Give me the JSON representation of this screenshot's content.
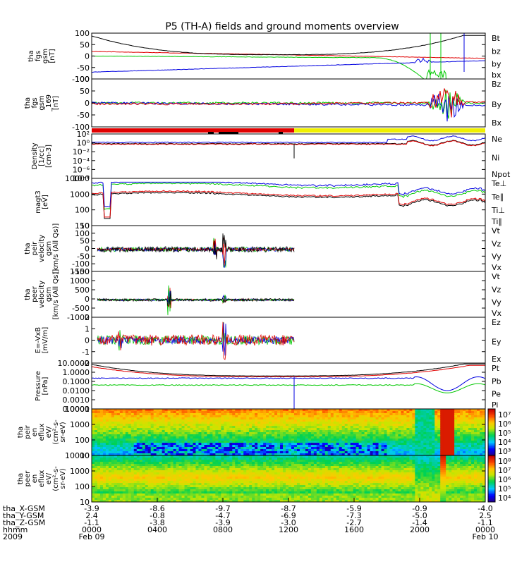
{
  "title": "P5 (TH-A) fields and ground moments overview",
  "colors": {
    "black": "#000000",
    "red": "#e00000",
    "green": "#00c800",
    "blue": "#0000e0",
    "yellow": "#f0f000",
    "background": "#ffffff"
  },
  "chart_data": [
    {
      "type": "line",
      "panel": "fgs",
      "ylabel_lines": [
        "tha",
        "fgs",
        "gsm",
        "[nT]"
      ],
      "ylim": [
        -100,
        100
      ],
      "yticks": [
        "100",
        "50",
        "0",
        "-50",
        "-100"
      ],
      "legend": [
        {
          "name": "Bt",
          "color": "#000000"
        },
        {
          "name": "bz",
          "color": "#e00000"
        },
        {
          "name": "by",
          "color": "#00c800"
        },
        {
          "name": "bx",
          "color": "#0000e0"
        }
      ]
    },
    {
      "type": "line",
      "panel": "fgs_69",
      "ylabel_lines": [
        "tha",
        "fgs",
        "gsm",
        "_169",
        "[nT]"
      ],
      "ylim": [
        -100,
        100
      ],
      "yticks": [
        "100",
        "50",
        "0",
        "-50",
        "-100"
      ],
      "legend": [
        {
          "name": "Bz",
          "color": "#e00000"
        },
        {
          "name": "By",
          "color": "#00c800"
        },
        {
          "name": "Bx",
          "color": "#0000e0"
        }
      ]
    },
    {
      "type": "line",
      "panel": "density",
      "ylabel_lines": [
        "Density",
        "[1/cc]",
        "[cm-3]"
      ],
      "log_scale": true,
      "yticks": [
        "10²",
        "10⁰",
        "10⁻²",
        "10⁻⁴",
        "10⁻⁶",
        "10⁻⁸"
      ],
      "legend": [
        {
          "name": "Ne",
          "color": "#e00000"
        },
        {
          "name": "Ni",
          "color": "#000000"
        },
        {
          "name": "Npot",
          "color": "#0000e0"
        }
      ]
    },
    {
      "type": "line",
      "panel": "temperature",
      "ylabel_lines": [
        "magt3",
        "[eV]"
      ],
      "log_scale": true,
      "yticks": [
        "10000",
        "1000",
        "100",
        "10"
      ],
      "legend": [
        {
          "name": "Te⊥",
          "color": "#e00000"
        },
        {
          "name": "Te∥",
          "color": "#000000"
        },
        {
          "name": "Ti⊥",
          "color": "#0000e0"
        },
        {
          "name": "Ti∥",
          "color": "#00c800"
        }
      ]
    },
    {
      "type": "line",
      "panel": "peir_velocity",
      "ylabel_lines": [
        "tha",
        "peir",
        "velocity",
        "gsm",
        "[km/s (All Qs)]"
      ],
      "yticks": [
        "150",
        "100",
        "50",
        "0",
        "-50",
        "-100",
        "-150"
      ],
      "legend": [
        {
          "name": "Vt",
          "color": "#000000"
        },
        {
          "name": "Vz",
          "color": "#e00000"
        },
        {
          "name": "Vy",
          "color": "#00c800"
        },
        {
          "name": "Vx",
          "color": "#0000e0"
        }
      ]
    },
    {
      "type": "line",
      "panel": "peer_velocity",
      "ylabel_lines": [
        "tha",
        "peer",
        "velocity",
        "gsm",
        "[km/s (All Qs)]"
      ],
      "yticks": [
        "1500",
        "1000",
        "500",
        "0",
        "-500",
        "-1000"
      ],
      "legend": [
        {
          "name": "Vt",
          "color": "#000000"
        },
        {
          "name": "Vz",
          "color": "#e00000"
        },
        {
          "name": "Vy",
          "color": "#00c800"
        },
        {
          "name": "Vx",
          "color": "#0000e0"
        }
      ]
    },
    {
      "type": "line",
      "panel": "efield",
      "ylabel_lines": [
        "E=-VxB",
        "[mV/m]"
      ],
      "yticks": [
        "2",
        "1",
        "0",
        "-1",
        "-2"
      ],
      "legend": [
        {
          "name": "Ez",
          "color": "#e00000"
        },
        {
          "name": "Ey",
          "color": "#00c800"
        },
        {
          "name": "Ex",
          "color": "#0000e0"
        }
      ]
    },
    {
      "type": "line",
      "panel": "pressure",
      "ylabel_lines": [
        "Pressure",
        "[nPa]"
      ],
      "log_scale": true,
      "yticks": [
        "10.0000",
        "1.0000",
        "0.1000",
        "0.0100",
        "0.0010",
        "0.0001"
      ],
      "legend": [
        {
          "name": "Pt",
          "color": "#000000"
        },
        {
          "name": "Pb",
          "color": "#e00000"
        },
        {
          "name": "Pe",
          "color": "#00c800"
        },
        {
          "name": "Pi",
          "color": "#0000e0"
        }
      ]
    },
    {
      "type": "heatmap",
      "panel": "peir_eflux",
      "ylabel_lines": [
        "tha",
        "peir",
        "en",
        "eflux",
        "eV/",
        "(cm²-s-",
        "sr-eV)"
      ],
      "yticks": [
        "10000",
        "1000",
        "100",
        "10"
      ],
      "colorbar_ticks": [
        "10⁷",
        "10⁶",
        "10⁵",
        "10⁴",
        "10³"
      ]
    },
    {
      "type": "heatmap",
      "panel": "peer_eflux",
      "ylabel_lines": [
        "tha",
        "peer",
        "en",
        "eflux",
        "eV/",
        "(cm²-s-",
        "sr-eV)"
      ],
      "yticks": [
        "10000",
        "1000",
        "100",
        "10"
      ],
      "colorbar_ticks": [
        "10⁸",
        "10⁷",
        "10⁶",
        "10⁵",
        "10⁴"
      ]
    }
  ],
  "xaxis": {
    "rows": [
      {
        "label": "tha_X-GSM",
        "values": [
          "-3.9",
          "-8.6",
          "-9.7",
          "-8.7",
          "-5.9",
          "-0.9",
          "-4.0"
        ]
      },
      {
        "label": "tha_Y-GSM",
        "values": [
          "2.4",
          "-0.8",
          "-4.7",
          "-6.9",
          "-7.3",
          "-5.0",
          "2.5"
        ]
      },
      {
        "label": "tha_Z-GSM",
        "values": [
          "-1.1",
          "-3.8",
          "-3.9",
          "-3.0",
          "-2.7",
          "-1.4",
          "-1.1"
        ]
      },
      {
        "label": "hhmm",
        "values": [
          "0000",
          "0400",
          "0800",
          "1200",
          "1600",
          "2000",
          "0000"
        ]
      },
      {
        "label": "2009",
        "values": [
          "Feb 09",
          "",
          "",
          "",
          "",
          "",
          "Feb 10"
        ]
      }
    ]
  }
}
